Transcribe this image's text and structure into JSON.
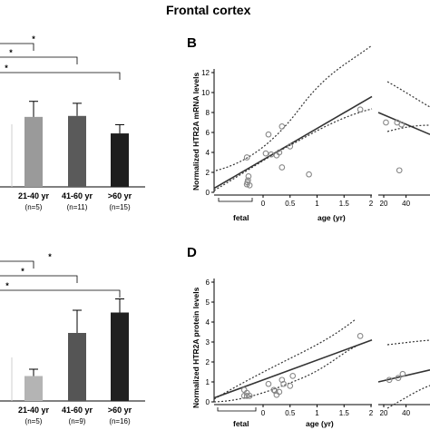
{
  "figure": {
    "title": "Frontal cortex",
    "panel_b": "B",
    "panel_d": "D"
  },
  "chart_data": [
    {
      "id": "A",
      "type": "bar",
      "categories": [
        "21-40 yr",
        "41-60 yr",
        ">60 yr"
      ],
      "n_labels": [
        "(n=5)",
        "(n=11)",
        "(n=15)"
      ],
      "values": [
        7.2,
        7.3,
        5.5
      ],
      "errors": [
        1.6,
        1.3,
        0.9
      ],
      "colors": [
        "#9a9a9a",
        "#5a5a5a",
        "#1e1e1e"
      ],
      "ylim": [
        0,
        14
      ],
      "significance": [
        "*",
        "*",
        "*"
      ]
    },
    {
      "id": "B",
      "type": "scatter",
      "ylabel": "Normalized HTR2A mRNA levels",
      "xlabel": "age (yr)",
      "left_xticks": [
        "0",
        "0.5",
        "1",
        "1.5",
        "2"
      ],
      "right_xticks": [
        "20",
        "40"
      ],
      "yticks": [
        "0",
        "2",
        "4",
        "6",
        "8",
        "10",
        "12"
      ],
      "ylim": [
        0,
        12
      ],
      "fetal_label": "fetal",
      "points_left": [
        [
          -0.3,
          3.5
        ],
        [
          -0.27,
          1.6
        ],
        [
          -0.28,
          1.2
        ],
        [
          -0.3,
          0.8
        ],
        [
          -0.25,
          0.7
        ],
        [
          -0.29,
          1.0
        ],
        [
          0.05,
          3.9
        ],
        [
          0.1,
          5.8
        ],
        [
          0.15,
          3.8
        ],
        [
          0.25,
          3.7
        ],
        [
          0.3,
          4.0
        ],
        [
          0.35,
          6.6
        ],
        [
          0.35,
          2.5
        ],
        [
          0.5,
          4.6
        ],
        [
          0.85,
          1.8
        ],
        [
          1.8,
          8.3
        ]
      ],
      "points_right": [
        [
          22,
          7.0
        ],
        [
          32,
          7.0
        ],
        [
          36,
          6.8
        ],
        [
          34,
          2.2
        ]
      ]
    },
    {
      "id": "C",
      "type": "bar",
      "categories": [
        "21-40 yr",
        "41-60 yr",
        ">60 yr"
      ],
      "n_labels": [
        "(n=5)",
        "(n=9)",
        "(n=16)"
      ],
      "values": [
        1.1,
        3.0,
        3.9
      ],
      "errors": [
        0.3,
        1.0,
        0.6
      ],
      "colors": [
        "#b4b4b4",
        "#555555",
        "#202020"
      ],
      "ylim": [
        0,
        6
      ],
      "significance": [
        "*",
        "*",
        "*"
      ]
    },
    {
      "id": "D",
      "type": "scatter",
      "ylabel": "Normalized HTR2A protein levels",
      "xlabel": "age (yr)",
      "left_xticks": [
        "0",
        "0.5",
        "1",
        "1.5",
        "2"
      ],
      "right_xticks": [
        "20",
        "40"
      ],
      "yticks": [
        "0",
        "1",
        "2",
        "3",
        "4",
        "5",
        "6"
      ],
      "ylim": [
        0,
        6
      ],
      "fetal_label": "fetal",
      "points_left": [
        [
          -0.35,
          0.6
        ],
        [
          -0.3,
          0.45
        ],
        [
          -0.3,
          0.3
        ],
        [
          -0.25,
          0.3
        ],
        [
          -0.35,
          0.3
        ],
        [
          0.1,
          0.9
        ],
        [
          0.2,
          0.6
        ],
        [
          0.22,
          0.55
        ],
        [
          0.25,
          0.35
        ],
        [
          0.3,
          0.5
        ],
        [
          0.35,
          1.1
        ],
        [
          0.38,
          0.9
        ],
        [
          0.5,
          0.8
        ],
        [
          0.55,
          1.3
        ],
        [
          1.8,
          3.3
        ]
      ],
      "points_right": [
        [
          25,
          1.1
        ],
        [
          33,
          1.2
        ],
        [
          37,
          1.4
        ]
      ]
    }
  ]
}
